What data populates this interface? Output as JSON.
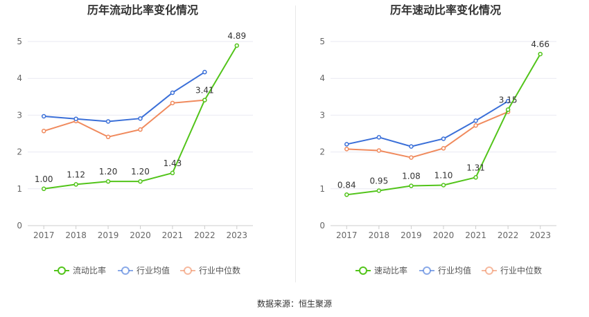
{
  "colors": {
    "series": [
      "#52c41a",
      "#3a6fd8",
      "#f08a5d"
    ],
    "axis": "#cccccc",
    "grid": "#e9e9f2",
    "tick_label": "#666666",
    "title": "#333333"
  },
  "source": "数据来源：恒生聚源",
  "chart_data": [
    {
      "type": "line",
      "title": "历年流动比率变化情况",
      "xlabel": "",
      "ylabel": "",
      "categories": [
        "2017",
        "2018",
        "2019",
        "2020",
        "2021",
        "2022",
        "2023"
      ],
      "ylim": [
        0,
        5
      ],
      "yticks": [
        0,
        1,
        2,
        3,
        4,
        5
      ],
      "grid": true,
      "legend": "bottom",
      "series": [
        {
          "name": "流动比率",
          "values": [
            1.0,
            1.12,
            1.2,
            1.2,
            1.43,
            3.41,
            4.89
          ],
          "labels": [
            "1.00",
            "1.12",
            "1.20",
            "1.20",
            "1.43",
            "3.41",
            "4.89"
          ]
        },
        {
          "name": "行业均值",
          "values": [
            2.97,
            2.9,
            2.83,
            2.91,
            3.61,
            4.17,
            null
          ]
        },
        {
          "name": "行业中位数",
          "values": [
            2.57,
            2.84,
            2.41,
            2.61,
            3.33,
            3.41,
            null
          ]
        }
      ]
    },
    {
      "type": "line",
      "title": "历年速动比率变化情况",
      "xlabel": "",
      "ylabel": "",
      "categories": [
        "2017",
        "2018",
        "2019",
        "2020",
        "2021",
        "2022",
        "2023"
      ],
      "ylim": [
        0,
        5
      ],
      "yticks": [
        0,
        1,
        2,
        3,
        4,
        5
      ],
      "grid": true,
      "legend": "bottom",
      "series": [
        {
          "name": "速动比率",
          "values": [
            0.84,
            0.95,
            1.08,
            1.1,
            1.31,
            3.15,
            4.66
          ],
          "labels": [
            "0.84",
            "0.95",
            "1.08",
            "1.10",
            "1.31",
            "3.15",
            "4.66"
          ]
        },
        {
          "name": "行业均值",
          "values": [
            2.21,
            2.4,
            2.15,
            2.36,
            2.85,
            3.38,
            null
          ]
        },
        {
          "name": "行业中位数",
          "values": [
            2.08,
            2.04,
            1.85,
            2.1,
            2.72,
            3.09,
            null
          ]
        }
      ]
    }
  ]
}
